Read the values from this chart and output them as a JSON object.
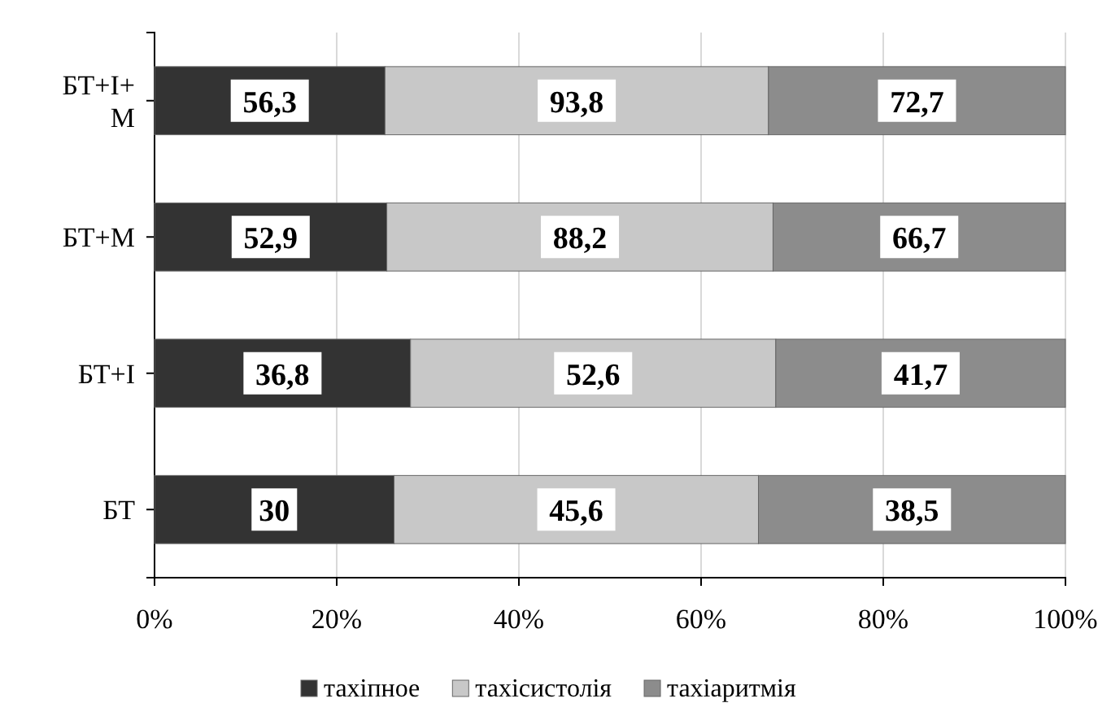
{
  "chart_data": {
    "type": "bar",
    "orientation": "horizontal",
    "stacked": true,
    "categories": [
      "БТ+І+ М",
      "БТ+М",
      "БТ+І",
      "БТ"
    ],
    "series": [
      {
        "name": "тахіпное",
        "color": "#333333",
        "values": [
          25.3,
          25.5,
          28.1,
          26.3
        ]
      },
      {
        "name": "тахісистолія",
        "color": "#c8c8c8",
        "values": [
          42.1,
          42.4,
          40.1,
          40.0
        ]
      },
      {
        "name": "тахіаритмія",
        "color": "#8c8c8c",
        "values": [
          32.6,
          32.1,
          31.8,
          33.7
        ]
      }
    ],
    "annotations": [
      "56,3",
      "93,8",
      "72,7",
      "52,9",
      "88,2",
      "66,7",
      "36,8",
      "52,6",
      "41,7",
      "30",
      "45,6",
      "38,5"
    ],
    "xlim": [
      0,
      100
    ],
    "xticks": [
      {
        "value": 0,
        "label": "0%"
      },
      {
        "value": 20,
        "label": "20%"
      },
      {
        "value": 40,
        "label": "40%"
      },
      {
        "value": 60,
        "label": "60%"
      },
      {
        "value": 80,
        "label": "80%"
      },
      {
        "value": 100,
        "label": "100%"
      }
    ],
    "grid": "x",
    "legend": "bottom"
  }
}
